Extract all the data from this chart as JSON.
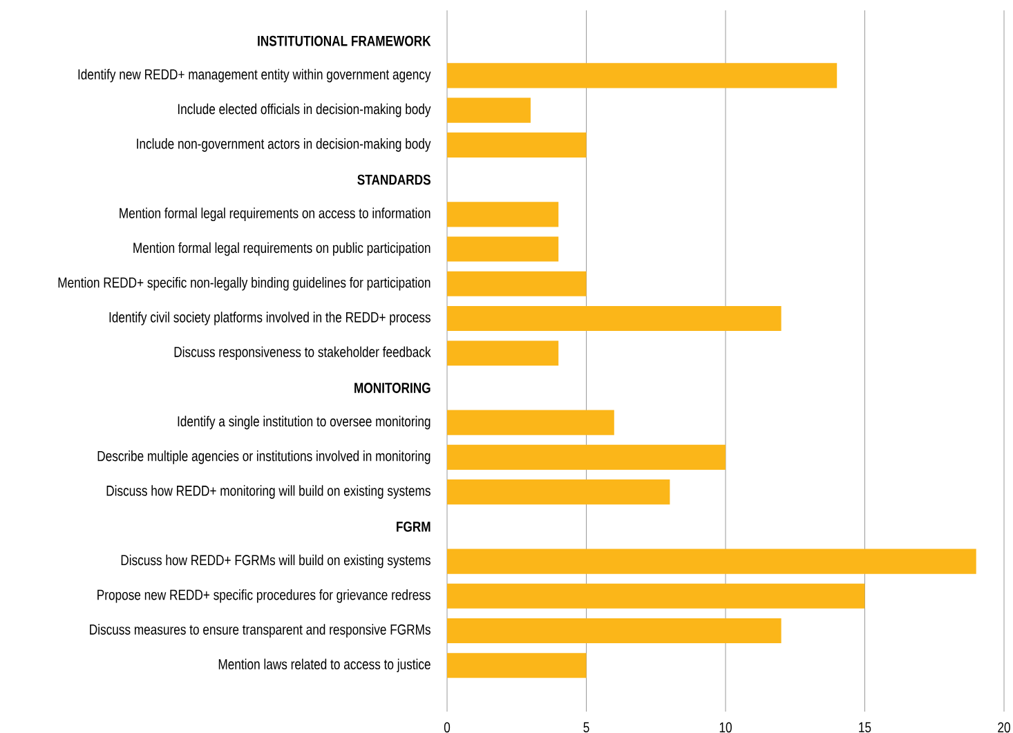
{
  "chart_data": {
    "type": "bar",
    "orientation": "horizontal",
    "categories": [
      "INSTITUTIONAL FRAMEWORK",
      "Identify new REDD+ management entity within government agency",
      "Include elected officials in decision-making body",
      "Include non-government actors in decision-making body",
      "STANDARDS",
      "Mention formal legal requirements on access to information",
      "Mention formal legal requirements on public participation",
      "Mention REDD+ specific non-legally binding guidelines for participation",
      "Identify civil society platforms involved in the REDD+ process",
      "Discuss responsiveness to stakeholder feedback",
      "MONITORING",
      "Identify a single institution to oversee monitoring",
      "Describe multiple agencies or institutions involved in monitoring",
      "Discuss how REDD+ monitoring will build on existing systems",
      "FGRM",
      "Discuss how REDD+ FGRMs will build on existing systems",
      "Propose new REDD+ specific procedures for grievance redress",
      "Discuss measures to ensure transparent and responsive FGRMs",
      "Mention laws related to access to justice"
    ],
    "values": [
      null,
      14,
      3,
      5,
      null,
      4,
      4,
      5,
      12,
      4,
      null,
      6,
      10,
      8,
      null,
      19,
      15,
      12,
      5
    ],
    "color": "#fbb619",
    "xlim": [
      0,
      20
    ],
    "xticks": [
      0,
      5,
      10,
      15,
      20
    ],
    "grid": "x"
  }
}
